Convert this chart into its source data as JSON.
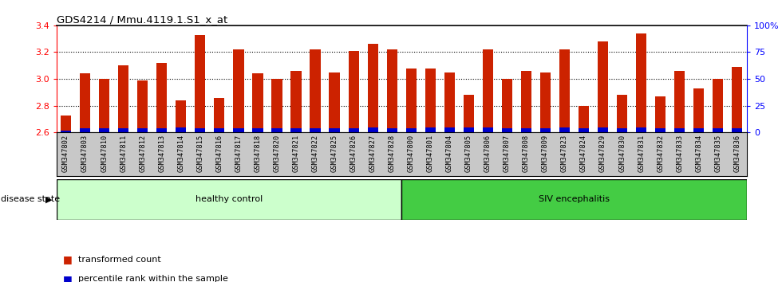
{
  "title": "GDS4214 / Mmu.4119.1.S1_x_at",
  "samples": [
    "GSM347802",
    "GSM347803",
    "GSM347810",
    "GSM347811",
    "GSM347812",
    "GSM347813",
    "GSM347814",
    "GSM347815",
    "GSM347816",
    "GSM347817",
    "GSM347818",
    "GSM347820",
    "GSM347821",
    "GSM347822",
    "GSM347825",
    "GSM347826",
    "GSM347827",
    "GSM347828",
    "GSM347800",
    "GSM347801",
    "GSM347804",
    "GSM347805",
    "GSM347806",
    "GSM347807",
    "GSM347808",
    "GSM347809",
    "GSM347823",
    "GSM347824",
    "GSM347829",
    "GSM347830",
    "GSM347831",
    "GSM347832",
    "GSM347833",
    "GSM347834",
    "GSM347835",
    "GSM347836"
  ],
  "transformed_count": [
    2.73,
    3.04,
    3.0,
    3.1,
    2.99,
    3.12,
    2.84,
    3.33,
    2.86,
    3.22,
    3.04,
    3.0,
    3.06,
    3.22,
    3.05,
    3.21,
    3.26,
    3.22,
    3.08,
    3.08,
    3.05,
    2.88,
    3.22,
    3.0,
    3.06,
    3.05,
    3.22,
    2.8,
    3.28,
    2.88,
    3.34,
    2.87,
    3.06,
    2.93,
    3.0,
    3.09
  ],
  "percentile_rank": [
    2,
    4,
    4,
    4,
    4,
    4,
    5,
    4,
    4,
    4,
    4,
    4,
    4,
    4,
    4,
    4,
    5,
    4,
    4,
    5,
    5,
    5,
    5,
    4,
    4,
    4,
    5,
    4,
    5,
    4,
    5,
    4,
    4,
    4,
    4,
    4
  ],
  "healthy_control_count": 18,
  "ylim_left": [
    2.6,
    3.4
  ],
  "ylim_right": [
    0,
    100
  ],
  "yticks_left": [
    2.6,
    2.8,
    3.0,
    3.2,
    3.4
  ],
  "yticks_right": [
    0,
    25,
    50,
    75,
    100
  ],
  "ytick_labels_right": [
    "0",
    "25",
    "50",
    "75",
    "100%"
  ],
  "bar_color_red": "#cc2200",
  "bar_color_blue": "#0000cc",
  "healthy_color": "#ccffcc",
  "siv_color": "#44cc44",
  "group_label_healthy": "healthy control",
  "group_label_siv": "SIV encephalitis",
  "disease_state_label": "disease state",
  "legend_red": "transformed count",
  "legend_blue": "percentile rank within the sample",
  "bar_width": 0.55,
  "ybase": 2.6,
  "tick_area_color": "#c8c8c8"
}
